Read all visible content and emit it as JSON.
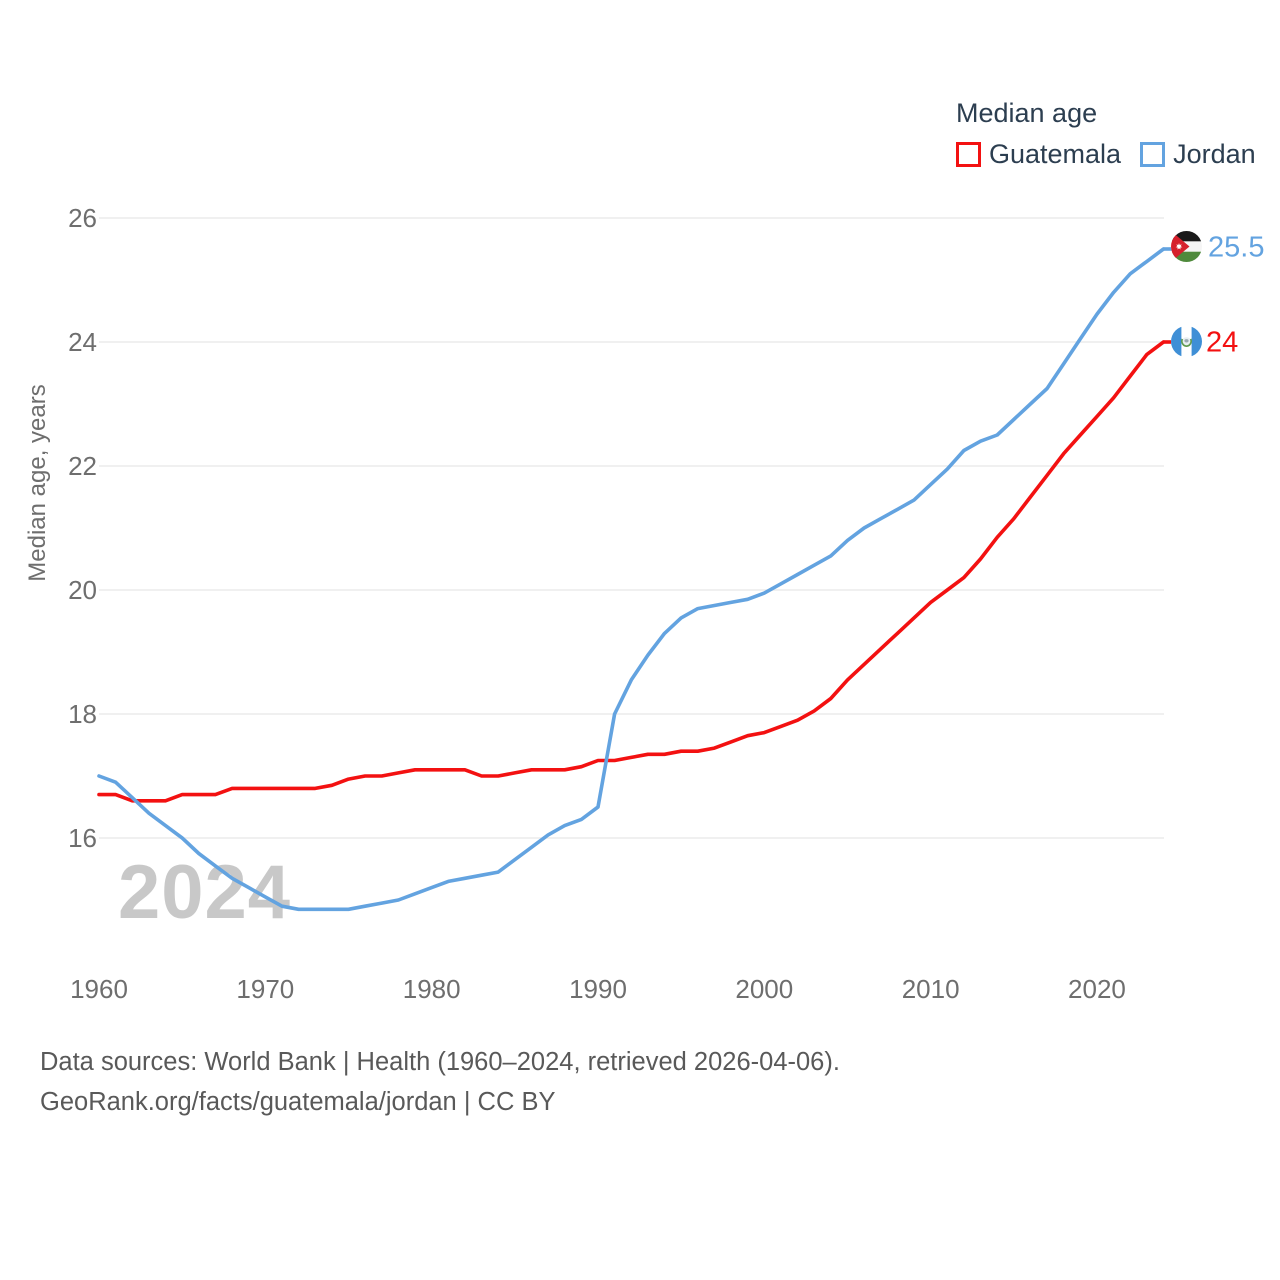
{
  "legend": {
    "title": "Median age",
    "items": [
      {
        "label": "Guatemala",
        "color": "#f31111"
      },
      {
        "label": "Jordan",
        "color": "#63a3e0"
      }
    ]
  },
  "y_axis": {
    "title": "Median age, years",
    "ticks": [
      16,
      18,
      20,
      22,
      24,
      26
    ]
  },
  "x_axis": {
    "ticks": [
      1960,
      1970,
      1980,
      1990,
      2000,
      2010,
      2020
    ]
  },
  "watermark": "2024",
  "end_labels": {
    "jordan": "25.5",
    "guatemala": "24"
  },
  "footer": {
    "line1": "Data sources: World Bank | Health (1960–2024, retrieved 2026-04-06).",
    "line2": "GeoRank.org/facts/guatemala/jordan | CC BY"
  },
  "chart_data": {
    "type": "line",
    "title": "Median age",
    "xlabel": "",
    "ylabel": "Median age, years",
    "x_range": [
      1960,
      2024
    ],
    "ylim": [
      14.3,
      26.5
    ],
    "grid": "horizontal",
    "legend_position": "top-right",
    "x": [
      1960,
      1961,
      1962,
      1963,
      1964,
      1965,
      1966,
      1967,
      1968,
      1969,
      1970,
      1971,
      1972,
      1973,
      1974,
      1975,
      1976,
      1977,
      1978,
      1979,
      1980,
      1981,
      1982,
      1983,
      1984,
      1985,
      1986,
      1987,
      1988,
      1989,
      1990,
      1991,
      1992,
      1993,
      1994,
      1995,
      1996,
      1997,
      1998,
      1999,
      2000,
      2001,
      2002,
      2003,
      2004,
      2005,
      2006,
      2007,
      2008,
      2009,
      2010,
      2011,
      2012,
      2013,
      2014,
      2015,
      2016,
      2017,
      2018,
      2019,
      2020,
      2021,
      2022,
      2023,
      2024
    ],
    "series": [
      {
        "name": "Guatemala",
        "color": "#f31111",
        "end_value": 24,
        "values": [
          16.7,
          16.7,
          16.6,
          16.6,
          16.6,
          16.7,
          16.7,
          16.7,
          16.8,
          16.8,
          16.8,
          16.8,
          16.8,
          16.8,
          16.85,
          16.95,
          17.0,
          17.0,
          17.05,
          17.1,
          17.1,
          17.1,
          17.1,
          17.0,
          17.0,
          17.05,
          17.1,
          17.1,
          17.1,
          17.15,
          17.25,
          17.25,
          17.3,
          17.35,
          17.35,
          17.4,
          17.4,
          17.45,
          17.55,
          17.65,
          17.7,
          17.8,
          17.9,
          18.05,
          18.25,
          18.55,
          18.8,
          19.05,
          19.3,
          19.55,
          19.8,
          20.0,
          20.2,
          20.5,
          20.85,
          21.15,
          21.5,
          21.85,
          22.2,
          22.5,
          22.8,
          23.1,
          23.45,
          23.8,
          24.0
        ]
      },
      {
        "name": "Jordan",
        "color": "#63a3e0",
        "end_value": 25.5,
        "values": [
          17.0,
          16.9,
          16.65,
          16.4,
          16.2,
          16.0,
          15.75,
          15.55,
          15.35,
          15.2,
          15.05,
          14.9,
          14.85,
          14.85,
          14.85,
          14.85,
          14.9,
          14.95,
          15.0,
          15.1,
          15.2,
          15.3,
          15.35,
          15.4,
          15.45,
          15.65,
          15.85,
          16.05,
          16.2,
          16.3,
          16.5,
          18.0,
          18.55,
          18.95,
          19.3,
          19.55,
          19.7,
          19.75,
          19.8,
          19.85,
          19.95,
          20.1,
          20.25,
          20.4,
          20.55,
          20.8,
          21.0,
          21.15,
          21.3,
          21.45,
          21.7,
          21.95,
          22.25,
          22.4,
          22.5,
          22.75,
          23.0,
          23.25,
          23.65,
          24.05,
          24.45,
          24.8,
          25.1,
          25.3,
          25.5
        ]
      }
    ]
  }
}
